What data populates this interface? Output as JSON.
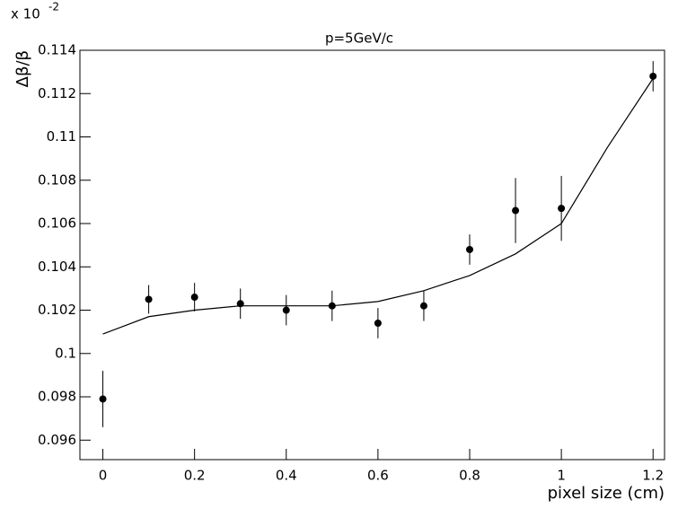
{
  "chart_data": {
    "type": "scatter",
    "title": "p=5GeV/c",
    "x_label": "pixel size (cm)",
    "y_label": "Δβ/β",
    "y_multiplier": "x 10",
    "y_multiplier_exponent": "-2",
    "x": [
      0,
      0.1,
      0.2,
      0.3,
      0.4,
      0.5,
      0.6,
      0.7,
      0.8,
      0.9,
      1.0,
      1.2
    ],
    "values": [
      0.0979,
      0.1025,
      0.1026,
      0.1023,
      0.102,
      0.1022,
      0.1014,
      0.1022,
      0.1048,
      0.1066,
      0.1067,
      0.1128
    ],
    "errors": [
      0.0013,
      0.00066,
      0.00066,
      0.0007,
      0.0007,
      0.0007,
      0.0007,
      0.0007,
      0.0007,
      0.0015,
      0.0015,
      0.0007
    ],
    "color": "#000000",
    "fit": {
      "x": [
        0,
        0.1,
        0.2,
        0.3,
        0.4,
        0.5,
        0.6,
        0.7,
        0.8,
        0.9,
        1.0,
        1.1,
        1.2
      ],
      "values": [
        0.1009,
        0.1017,
        0.102,
        0.1022,
        0.1022,
        0.1022,
        0.1024,
        0.1029,
        0.1036,
        0.1046,
        0.106,
        0.1095,
        0.1127
      ]
    },
    "xlim": [
      -0.05,
      1.225
    ],
    "ylim": [
      0.0951,
      0.114
    ],
    "xticks": [
      0,
      0.2,
      0.4,
      0.6,
      0.8,
      1,
      1.2
    ],
    "yticks": [
      0.096,
      0.098,
      0.1,
      0.102,
      0.104,
      0.106,
      0.108,
      0.11,
      0.112,
      0.114
    ]
  }
}
